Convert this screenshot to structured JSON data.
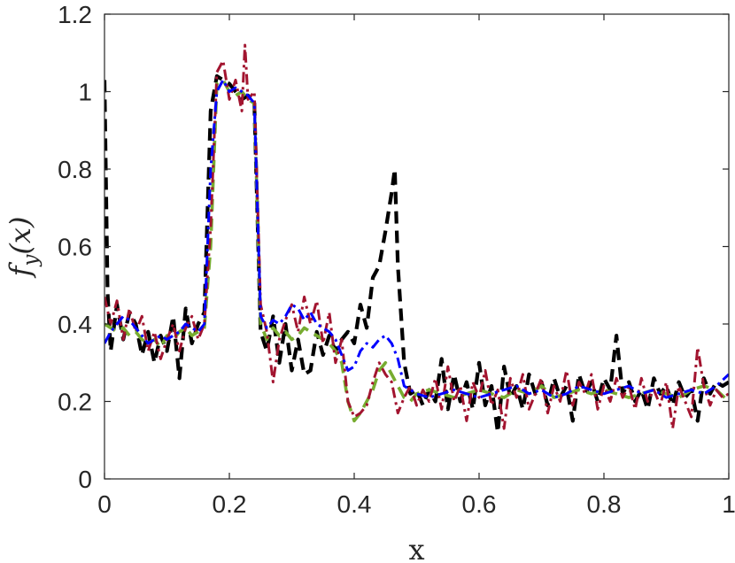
{
  "chart_data": {
    "type": "line",
    "title": "",
    "xlabel": "x",
    "ylabel": "f_y(x)",
    "xlim": [
      0,
      1
    ],
    "ylim": [
      0,
      1.2
    ],
    "xticks": [
      0,
      0.2,
      0.4,
      0.6,
      0.8,
      1
    ],
    "xtick_labels": [
      "0",
      "0.2",
      "0.4",
      "0.6",
      "0.8",
      "1"
    ],
    "yticks": [
      0,
      0.2,
      0.4,
      0.6,
      0.8,
      1,
      1.2
    ],
    "ytick_labels": [
      "0",
      "0.2",
      "0.4",
      "0.6",
      "0.8",
      "1",
      "1.2"
    ],
    "grid": false,
    "legend": "none",
    "series": [
      {
        "color": "#000000",
        "style": "dashed",
        "x": [
          0,
          0.005,
          0.01,
          0.02,
          0.03,
          0.04,
          0.05,
          0.06,
          0.07,
          0.08,
          0.09,
          0.1,
          0.11,
          0.12,
          0.13,
          0.14,
          0.15,
          0.16,
          0.17,
          0.18,
          0.19,
          0.2,
          0.21,
          0.22,
          0.23,
          0.24,
          0.25,
          0.26,
          0.27,
          0.28,
          0.29,
          0.3,
          0.31,
          0.32,
          0.33,
          0.34,
          0.35,
          0.36,
          0.37,
          0.38,
          0.39,
          0.4,
          0.41,
          0.42,
          0.43,
          0.44,
          0.45,
          0.46,
          0.465,
          0.47,
          0.48,
          0.49,
          0.5,
          0.51,
          0.52,
          0.53,
          0.54,
          0.55,
          0.56,
          0.57,
          0.58,
          0.59,
          0.6,
          0.61,
          0.62,
          0.63,
          0.64,
          0.65,
          0.66,
          0.67,
          0.68,
          0.69,
          0.7,
          0.71,
          0.72,
          0.73,
          0.74,
          0.75,
          0.76,
          0.77,
          0.78,
          0.79,
          0.8,
          0.81,
          0.82,
          0.83,
          0.84,
          0.85,
          0.86,
          0.87,
          0.88,
          0.89,
          0.9,
          0.91,
          0.92,
          0.93,
          0.94,
          0.95,
          0.96,
          0.97,
          0.98,
          0.99,
          1.0
        ],
        "y": [
          1.03,
          0.48,
          0.33,
          0.45,
          0.36,
          0.43,
          0.4,
          0.32,
          0.38,
          0.3,
          0.37,
          0.33,
          0.42,
          0.26,
          0.44,
          0.35,
          0.4,
          0.43,
          0.95,
          1.04,
          1.03,
          1.02,
          1.0,
          0.98,
          0.99,
          0.97,
          0.38,
          0.33,
          0.42,
          0.3,
          0.4,
          0.28,
          0.36,
          0.27,
          0.28,
          0.38,
          0.32,
          0.37,
          0.33,
          0.36,
          0.38,
          0.35,
          0.45,
          0.39,
          0.52,
          0.55,
          0.64,
          0.74,
          0.8,
          0.55,
          0.3,
          0.22,
          0.23,
          0.19,
          0.23,
          0.2,
          0.31,
          0.18,
          0.27,
          0.2,
          0.25,
          0.18,
          0.3,
          0.19,
          0.24,
          0.12,
          0.29,
          0.21,
          0.24,
          0.18,
          0.27,
          0.22,
          0.25,
          0.19,
          0.26,
          0.21,
          0.24,
          0.15,
          0.27,
          0.22,
          0.25,
          0.2,
          0.26,
          0.23,
          0.37,
          0.22,
          0.25,
          0.2,
          0.23,
          0.18,
          0.26,
          0.22,
          0.24,
          0.19,
          0.25,
          0.21,
          0.23,
          0.15,
          0.26,
          0.22,
          0.25,
          0.24,
          0.25
        ]
      },
      {
        "color": "#77ac30",
        "style": "dashed",
        "x": [
          0,
          0.01,
          0.02,
          0.03,
          0.04,
          0.05,
          0.06,
          0.07,
          0.08,
          0.09,
          0.1,
          0.11,
          0.12,
          0.13,
          0.14,
          0.15,
          0.16,
          0.17,
          0.18,
          0.19,
          0.2,
          0.21,
          0.22,
          0.23,
          0.24,
          0.25,
          0.26,
          0.27,
          0.28,
          0.29,
          0.3,
          0.31,
          0.32,
          0.33,
          0.34,
          0.35,
          0.36,
          0.37,
          0.38,
          0.39,
          0.4,
          0.41,
          0.42,
          0.43,
          0.44,
          0.45,
          0.46,
          0.47,
          0.48,
          0.49,
          0.5,
          0.52,
          0.54,
          0.56,
          0.58,
          0.6,
          0.62,
          0.64,
          0.66,
          0.68,
          0.7,
          0.72,
          0.74,
          0.76,
          0.78,
          0.8,
          0.82,
          0.84,
          0.86,
          0.88,
          0.9,
          0.92,
          0.94,
          0.96,
          0.98,
          1.0
        ],
        "y": [
          0.4,
          0.39,
          0.38,
          0.39,
          0.37,
          0.38,
          0.36,
          0.35,
          0.36,
          0.34,
          0.37,
          0.36,
          0.38,
          0.39,
          0.37,
          0.38,
          0.39,
          0.6,
          1.02,
          1.03,
          1.0,
          0.99,
          1.0,
          0.98,
          0.97,
          0.4,
          0.36,
          0.39,
          0.37,
          0.38,
          0.36,
          0.37,
          0.39,
          0.38,
          0.37,
          0.36,
          0.35,
          0.33,
          0.3,
          0.2,
          0.15,
          0.17,
          0.2,
          0.23,
          0.28,
          0.3,
          0.27,
          0.24,
          0.21,
          0.2,
          0.22,
          0.23,
          0.22,
          0.21,
          0.22,
          0.23,
          0.22,
          0.21,
          0.23,
          0.22,
          0.24,
          0.21,
          0.22,
          0.23,
          0.22,
          0.23,
          0.22,
          0.21,
          0.22,
          0.23,
          0.22,
          0.21,
          0.23,
          0.24,
          0.23,
          0.2
        ]
      },
      {
        "color": "#a2142f",
        "style": "dashdot",
        "x": [
          0,
          0.01,
          0.02,
          0.03,
          0.04,
          0.05,
          0.06,
          0.07,
          0.08,
          0.09,
          0.1,
          0.11,
          0.12,
          0.13,
          0.14,
          0.15,
          0.16,
          0.17,
          0.18,
          0.19,
          0.2,
          0.21,
          0.22,
          0.225,
          0.23,
          0.24,
          0.25,
          0.26,
          0.27,
          0.28,
          0.29,
          0.3,
          0.31,
          0.32,
          0.33,
          0.34,
          0.35,
          0.36,
          0.37,
          0.38,
          0.39,
          0.4,
          0.41,
          0.42,
          0.43,
          0.44,
          0.45,
          0.46,
          0.47,
          0.48,
          0.49,
          0.5,
          0.51,
          0.52,
          0.53,
          0.54,
          0.55,
          0.56,
          0.57,
          0.58,
          0.59,
          0.6,
          0.61,
          0.62,
          0.63,
          0.64,
          0.65,
          0.66,
          0.67,
          0.68,
          0.69,
          0.7,
          0.71,
          0.72,
          0.73,
          0.74,
          0.75,
          0.76,
          0.77,
          0.78,
          0.79,
          0.8,
          0.81,
          0.82,
          0.83,
          0.84,
          0.85,
          0.86,
          0.87,
          0.88,
          0.89,
          0.9,
          0.91,
          0.92,
          0.93,
          0.94,
          0.95,
          0.96,
          0.97,
          0.98,
          0.99,
          1.0
        ],
        "y": [
          0.47,
          0.4,
          0.46,
          0.36,
          0.44,
          0.38,
          0.42,
          0.33,
          0.38,
          0.31,
          0.36,
          0.4,
          0.33,
          0.39,
          0.42,
          0.36,
          0.4,
          0.65,
          1.05,
          1.08,
          0.98,
          1.03,
          0.95,
          1.12,
          0.98,
          1.0,
          0.45,
          0.38,
          0.25,
          0.36,
          0.41,
          0.45,
          0.38,
          0.47,
          0.4,
          0.46,
          0.35,
          0.43,
          0.3,
          0.36,
          0.2,
          0.16,
          0.17,
          0.19,
          0.25,
          0.3,
          0.27,
          0.25,
          0.17,
          0.21,
          0.24,
          0.19,
          0.23,
          0.2,
          0.26,
          0.18,
          0.29,
          0.2,
          0.24,
          0.15,
          0.25,
          0.21,
          0.28,
          0.19,
          0.23,
          0.13,
          0.26,
          0.21,
          0.27,
          0.18,
          0.22,
          0.26,
          0.17,
          0.24,
          0.2,
          0.28,
          0.19,
          0.25,
          0.22,
          0.27,
          0.18,
          0.24,
          0.2,
          0.26,
          0.21,
          0.24,
          0.18,
          0.26,
          0.2,
          0.23,
          0.19,
          0.25,
          0.13,
          0.24,
          0.2,
          0.16,
          0.34,
          0.24,
          0.19,
          0.23,
          0.21,
          0.22
        ]
      },
      {
        "color": "#0000ff",
        "style": "dashdot",
        "x": [
          0,
          0.01,
          0.02,
          0.03,
          0.04,
          0.05,
          0.06,
          0.07,
          0.08,
          0.09,
          0.1,
          0.11,
          0.12,
          0.13,
          0.14,
          0.15,
          0.16,
          0.17,
          0.18,
          0.19,
          0.2,
          0.21,
          0.22,
          0.23,
          0.24,
          0.25,
          0.26,
          0.27,
          0.28,
          0.29,
          0.3,
          0.31,
          0.32,
          0.33,
          0.34,
          0.35,
          0.36,
          0.37,
          0.38,
          0.39,
          0.4,
          0.41,
          0.42,
          0.43,
          0.44,
          0.45,
          0.46,
          0.47,
          0.48,
          0.49,
          0.5,
          0.52,
          0.54,
          0.56,
          0.58,
          0.6,
          0.62,
          0.64,
          0.66,
          0.68,
          0.7,
          0.72,
          0.74,
          0.76,
          0.78,
          0.8,
          0.82,
          0.84,
          0.86,
          0.88,
          0.9,
          0.92,
          0.94,
          0.96,
          0.98,
          1.0
        ],
        "y": [
          0.35,
          0.38,
          0.4,
          0.42,
          0.41,
          0.39,
          0.37,
          0.35,
          0.36,
          0.37,
          0.36,
          0.37,
          0.38,
          0.4,
          0.39,
          0.38,
          0.4,
          0.8,
          1.0,
          1.03,
          1.0,
          1.01,
          1.0,
          0.99,
          0.97,
          0.42,
          0.39,
          0.41,
          0.4,
          0.42,
          0.45,
          0.44,
          0.41,
          0.43,
          0.4,
          0.39,
          0.38,
          0.36,
          0.32,
          0.28,
          0.29,
          0.33,
          0.35,
          0.34,
          0.36,
          0.37,
          0.35,
          0.31,
          0.24,
          0.23,
          0.22,
          0.21,
          0.22,
          0.23,
          0.22,
          0.21,
          0.22,
          0.23,
          0.24,
          0.22,
          0.23,
          0.21,
          0.22,
          0.24,
          0.23,
          0.22,
          0.23,
          0.24,
          0.22,
          0.23,
          0.21,
          0.22,
          0.23,
          0.22,
          0.24,
          0.27
        ]
      }
    ]
  }
}
